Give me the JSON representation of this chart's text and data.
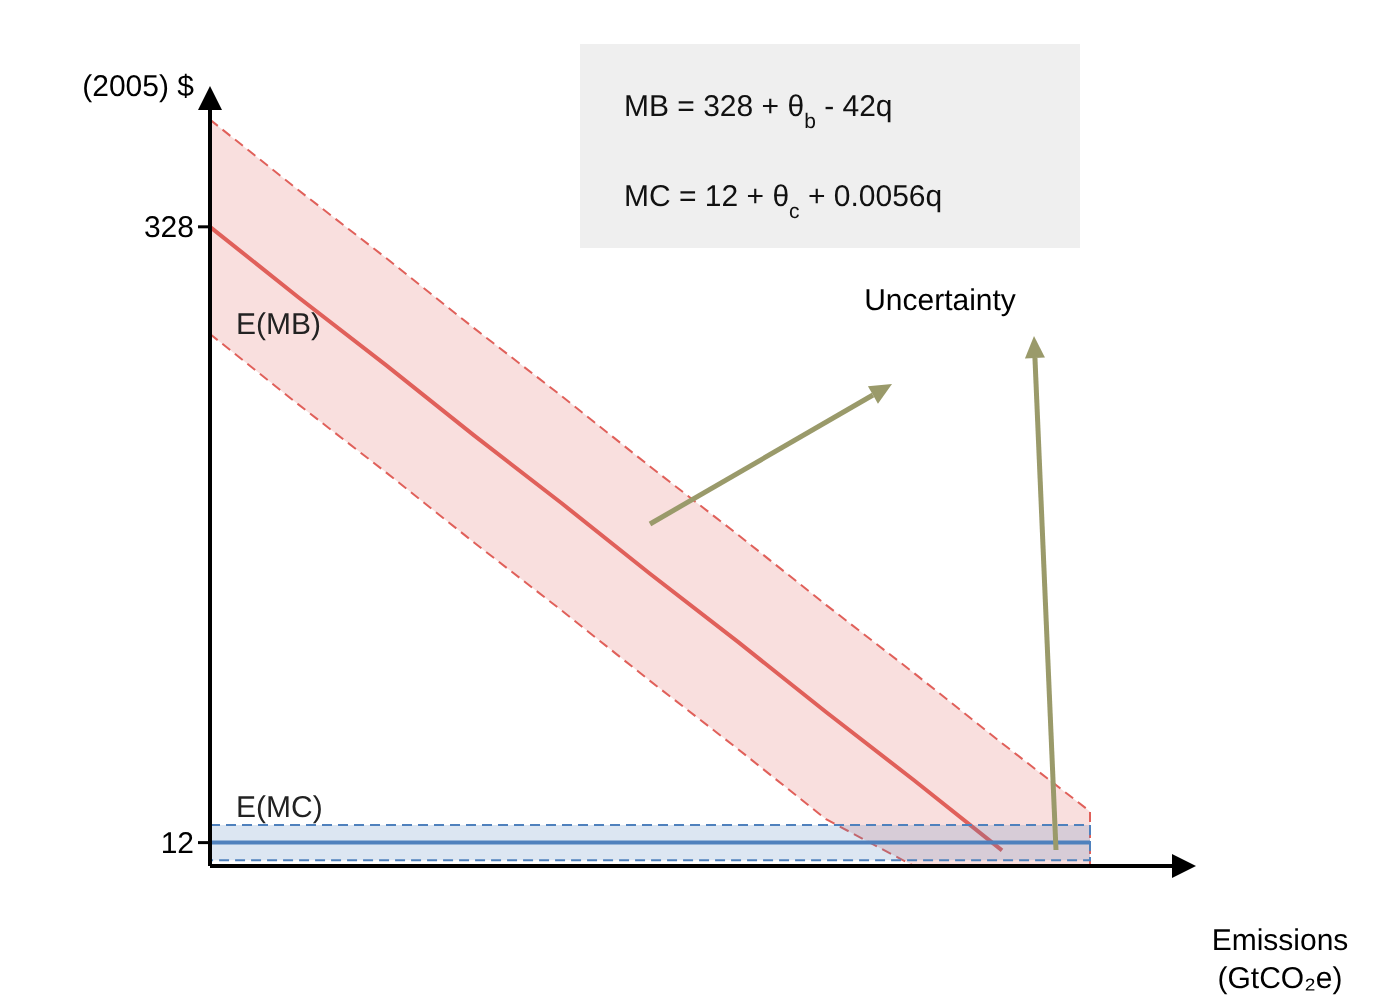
{
  "chart_data": {
    "type": "line",
    "ylabel": "(2005) $",
    "xlabel": "Emissions (GtCO₂e)",
    "categories": [
      null,
      null,
      null,
      null,
      null,
      null,
      null,
      null,
      null,
      null,
      null
    ],
    "ylim": [
      0,
      390
    ],
    "yticks": [
      12,
      328
    ],
    "grid": false,
    "marker": "none",
    "line_style": "solid",
    "annotations": [
      "MB = 328 + θ$_{b}$ - 42q",
      "MC = 12 + θ$_{c}$ + 0.0056q",
      "Uncertainty"
    ],
    "series": [
      {
        "name": "E(MB)",
        "color": "#e0605a",
        "values": [
          328,
          292,
          257,
          221,
          186,
          150,
          115,
          79,
          44,
          8,
          null
        ],
        "lower": [
          273,
          237,
          202,
          166,
          131,
          95,
          60,
          24,
          0,
          0,
          0
        ],
        "upper": [
          383,
          347,
          312,
          276,
          241,
          205,
          170,
          134,
          99,
          63,
          28
        ]
      },
      {
        "name": "E(MC)",
        "color": "#4f81bd",
        "values": [
          12,
          12,
          12,
          12,
          12,
          12,
          12,
          12,
          12,
          12,
          12
        ],
        "lower": [
          3,
          3,
          3,
          3,
          3,
          3,
          3,
          3,
          3,
          3,
          3
        ],
        "upper": [
          21,
          21,
          21,
          21,
          21,
          21,
          21,
          21,
          21,
          21,
          21
        ]
      }
    ]
  }
}
